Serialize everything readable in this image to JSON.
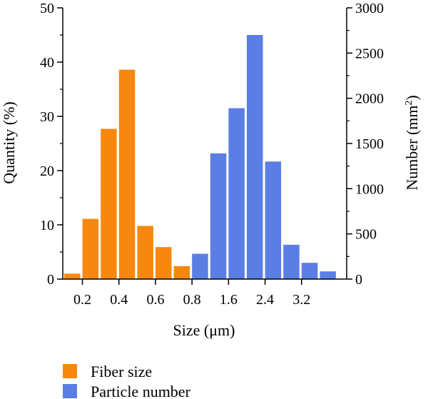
{
  "chart_data": {
    "type": "bar",
    "xlabel": "Size (μm)",
    "ylabel_left": "Quantity (%)",
    "ylabel_right": "Number (mm",
    "ylabel_right_sup": "2",
    "ylabel_right_close": ")",
    "y_left_lim": [
      0,
      50
    ],
    "y_right_lim": [
      0,
      3000
    ],
    "y_left_ticks": [
      "0",
      "10",
      "20",
      "30",
      "40",
      "50"
    ],
    "y_right_ticks": [
      "0",
      "500",
      "1000",
      "1500",
      "2000",
      "2500",
      "3000"
    ],
    "x_tick_labels": [
      "0.2",
      "0.4",
      "0.6",
      "0.8",
      "1.6",
      "2.4",
      "3.2"
    ],
    "grid": false,
    "legend_position": "bottom-left",
    "series": [
      {
        "name": "Fiber size",
        "axis": "left",
        "color": "#f7880f",
        "slots": [
          0,
          1,
          2,
          3,
          4,
          5,
          6
        ],
        "values": [
          1.0,
          11.1,
          27.7,
          38.6,
          9.8,
          5.9,
          2.4
        ]
      },
      {
        "name": "Particle number",
        "axis": "right",
        "color": "#5b7ee5",
        "slots": [
          7,
          8,
          9,
          10,
          11,
          12,
          13,
          14
        ],
        "values": [
          280,
          1390,
          1890,
          2700,
          1300,
          380,
          180,
          85
        ]
      }
    ]
  }
}
